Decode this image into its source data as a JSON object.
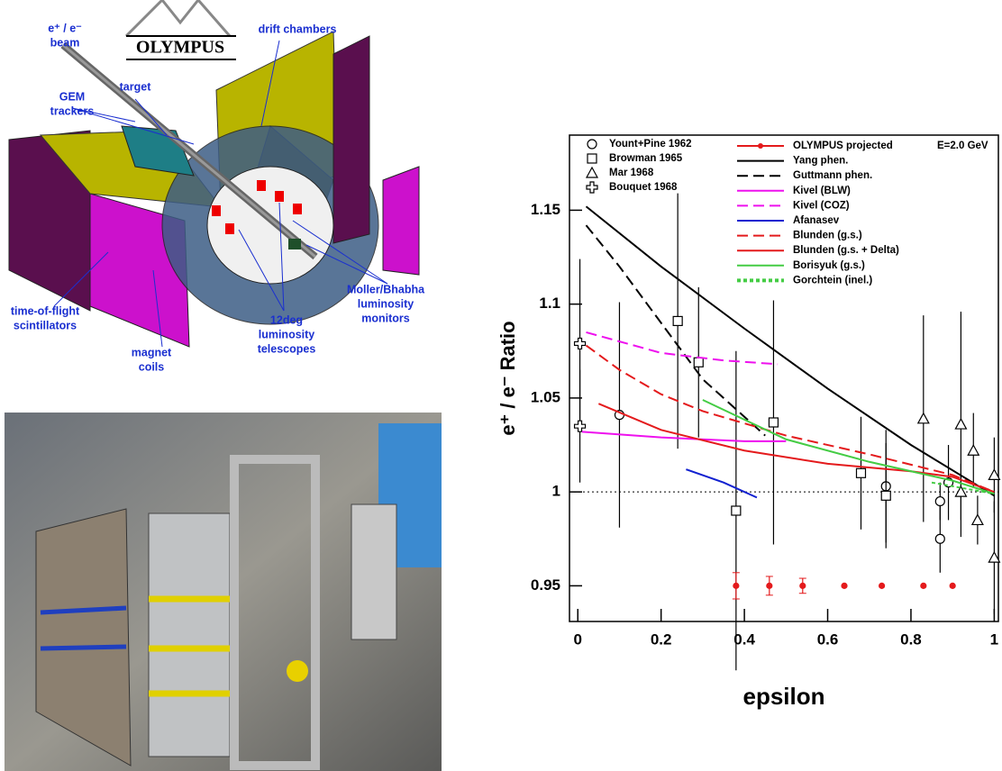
{
  "diagram": {
    "logo": "OLYMPUS",
    "labels": [
      "e⁺ / e⁻",
      "beam",
      "drift chambers",
      "target",
      "GEM",
      "trackers",
      "time-of-flight",
      "scintillators",
      "magnet",
      "coils",
      "12deg",
      "luminosity",
      "telescopes",
      "Moller/Bhabha",
      "luminosity",
      "monitors"
    ]
  },
  "chart_data": {
    "type": "line",
    "xlabel": "epsilon",
    "ylabel": "e⁺ / e⁻ Ratio",
    "annotation": "E=2.0 GeV",
    "xlim": [
      -0.02,
      1.01
    ],
    "ylim": [
      0.931,
      1.19
    ],
    "xticks": [
      0,
      0.2,
      0.4,
      0.6,
      0.8,
      1
    ],
    "yticks": [
      0.95,
      1,
      1.05,
      1.1,
      1.15
    ],
    "reference_line": 1,
    "series": [
      {
        "name": "Yount+Pine 1962",
        "marker": "circle",
        "color": "#000000",
        "x": [
          0.1,
          0.74,
          0.87,
          0.87,
          0.89
        ],
        "values": [
          1.041,
          1.003,
          0.995,
          0.975,
          1.005
        ],
        "errors": [
          0.06,
          0.03,
          0.01,
          0.018,
          0.02
        ]
      },
      {
        "name": "Browman 1965",
        "marker": "square",
        "color": "#000000",
        "x": [
          0.24,
          0.29,
          0.38,
          0.47,
          0.68,
          0.74
        ],
        "values": [
          1.091,
          1.069,
          0.99,
          1.037,
          1.01,
          0.998
        ],
        "errors": [
          0.068,
          0.04,
          0.085,
          0.065,
          0.03,
          0.028
        ]
      },
      {
        "name": "Mar 1968",
        "marker": "triangle",
        "color": "#000000",
        "x": [
          0.83,
          0.92,
          0.95,
          0.96,
          1.0,
          1.0,
          0.92
        ],
        "values": [
          1.039,
          1.036,
          1.022,
          0.985,
          1.009,
          0.965,
          1.0
        ],
        "errors": [
          0.055,
          0.06,
          0.02,
          0.013,
          0.02,
          0.03,
          0.015
        ]
      },
      {
        "name": "Bouquet 1968",
        "marker": "cross",
        "color": "#000000",
        "x": [
          0.005,
          0.005
        ],
        "values": [
          1.079,
          1.035
        ],
        "errors": [
          0.045,
          0.03
        ]
      },
      {
        "name": "OLYMPUS projected",
        "marker": "dot",
        "color": "#e41a1c",
        "x": [
          0.38,
          0.46,
          0.54,
          0.64,
          0.73,
          0.83,
          0.9
        ],
        "values": [
          0.95,
          0.95,
          0.95,
          0.95,
          0.95,
          0.95,
          0.95
        ],
        "errors": [
          0.007,
          0.005,
          0.004,
          0.0,
          0.0,
          0.0,
          0.0
        ]
      },
      {
        "name": "Yang phen.",
        "dash": "solid",
        "color": "#000000",
        "x": [
          0.02,
          0.2,
          0.4,
          0.6,
          0.8,
          1.0
        ],
        "values": [
          1.152,
          1.12,
          1.087,
          1.055,
          1.025,
          0.998
        ]
      },
      {
        "name": "Guttmann phen.",
        "dash": "dashed",
        "color": "#000000",
        "x": [
          0.02,
          0.1,
          0.2,
          0.3,
          0.4,
          0.45
        ],
        "values": [
          1.142,
          1.12,
          1.09,
          1.06,
          1.04,
          1.03
        ]
      },
      {
        "name": "Kivel (BLW)",
        "dash": "solid",
        "color": "#ee11ee",
        "x": [
          0.01,
          0.2,
          0.4,
          0.5
        ],
        "values": [
          1.032,
          1.029,
          1.027,
          1.027
        ]
      },
      {
        "name": "Kivel (COZ)",
        "dash": "dashed",
        "color": "#ee11ee",
        "x": [
          0.02,
          0.2,
          0.35,
          0.48
        ],
        "values": [
          1.085,
          1.074,
          1.07,
          1.068
        ]
      },
      {
        "name": "Afanasev",
        "dash": "solid",
        "color": "#1020d0",
        "x": [
          0.26,
          0.35,
          0.43
        ],
        "values": [
          1.012,
          1.005,
          0.997
        ]
      },
      {
        "name": "Blunden (g.s.)",
        "dash": "dashed",
        "color": "#e41a1c",
        "x": [
          0.02,
          0.1,
          0.2,
          0.3,
          0.5,
          0.7,
          0.9,
          1.0
        ],
        "values": [
          1.078,
          1.065,
          1.052,
          1.043,
          1.03,
          1.02,
          1.009,
          1.0
        ]
      },
      {
        "name": "Blunden (g.s. + Delta)",
        "dash": "solid",
        "color": "#e41a1c",
        "x": [
          0.05,
          0.2,
          0.4,
          0.6,
          0.8,
          0.9,
          1.0
        ],
        "values": [
          1.047,
          1.033,
          1.022,
          1.015,
          1.011,
          1.008,
          1.0
        ]
      },
      {
        "name": "Borisyuk (g.s.)",
        "dash": "solid",
        "color": "#44cc44",
        "x": [
          0.3,
          0.5,
          0.7,
          0.9,
          1.0
        ],
        "values": [
          1.049,
          1.028,
          1.016,
          1.006,
          0.999
        ]
      },
      {
        "name": "Gorchtein (inel.)",
        "dash": "dotted",
        "color": "#44cc44",
        "x": [
          0.85,
          1.0
        ],
        "values": [
          1.005,
          0.999
        ]
      }
    ]
  }
}
